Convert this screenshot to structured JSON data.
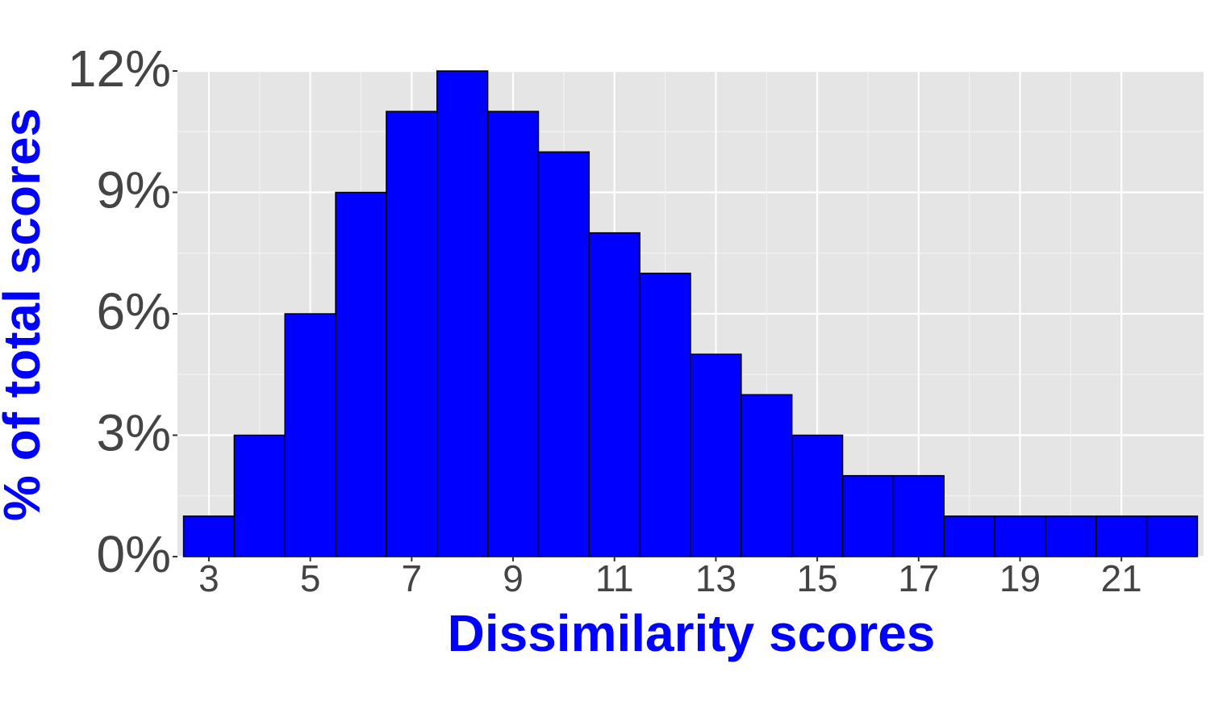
{
  "chart_data": {
    "type": "histogram",
    "x_label": "Dissimilarity scores",
    "y_label": "% of total scores",
    "bins": [
      2.5,
      3.5,
      4.5,
      5.5,
      6.5,
      7.5,
      8.5,
      9.5,
      10.5,
      11.5,
      12.5,
      13.5,
      14.5,
      15.5,
      16.5,
      17.5,
      18.5,
      19.5,
      20.5,
      21.5,
      22.5
    ],
    "values": [
      1,
      3,
      6,
      9,
      11,
      12,
      11,
      10,
      8,
      7,
      5,
      4,
      3,
      2,
      2,
      1,
      1,
      1,
      1,
      1
    ],
    "color": "#0000ff",
    "edge_color": "#000000",
    "xlim": [
      2.38,
      22.62
    ],
    "xticks": [
      3,
      5,
      7,
      9,
      11,
      13,
      15,
      17,
      19,
      21
    ],
    "ylim": [
      0,
      12
    ],
    "yticks": [
      {
        "value": 0,
        "label": "0%"
      },
      {
        "value": 3,
        "label": "3%"
      },
      {
        "value": 6,
        "label": "6%"
      },
      {
        "value": 9,
        "label": "9%"
      },
      {
        "value": 12,
        "label": "12%"
      }
    ],
    "grid": true,
    "minor_grid": true
  }
}
